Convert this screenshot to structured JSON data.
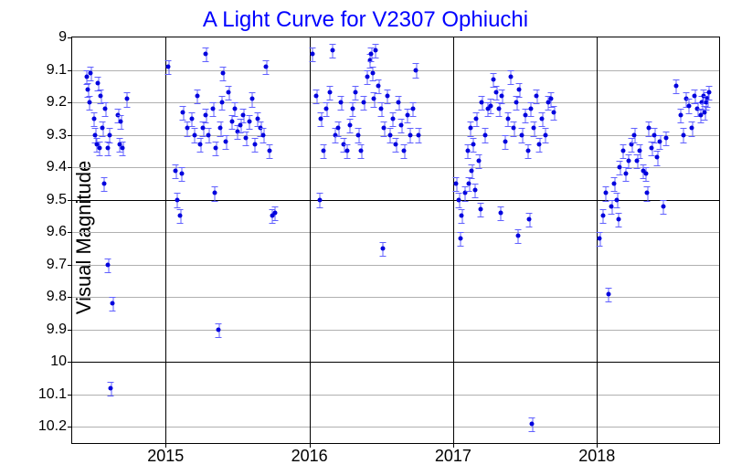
{
  "chart": {
    "type": "scatter",
    "title": "A Light Curve for V2307 Ophiuchi",
    "title_color": "#0000ff",
    "title_fontsize": 24,
    "ylabel": "Visual Magnitude",
    "ylabel_fontsize": 22,
    "background_color": "#ffffff",
    "point_color": "#0000dd",
    "errorbar_color": "#6060ff",
    "grid_major_color": "#000000",
    "grid_minor_color": "#b0b0b0",
    "xlim": [
      2014.35,
      2018.85
    ],
    "ylim": [
      10.25,
      9.0
    ],
    "y_inverted": true,
    "ytick_labels": [
      "9",
      "9.1",
      "9.2",
      "9.3",
      "9.4",
      "9.5",
      "9.6",
      "9.7",
      "9.8",
      "9.9",
      "10",
      "10.1",
      "10.2"
    ],
    "ytick_values": [
      9.0,
      9.1,
      9.2,
      9.3,
      9.4,
      9.5,
      9.6,
      9.7,
      9.8,
      9.9,
      10.0,
      10.1,
      10.2
    ],
    "ytick_major": [
      9.0,
      9.5,
      10.0
    ],
    "xtick_labels": [
      "2015",
      "2016",
      "2017",
      "2018"
    ],
    "xtick_values": [
      2015,
      2016,
      2017,
      2018
    ],
    "error_y": 0.02,
    "data": [
      [
        2014.45,
        9.12
      ],
      [
        2014.46,
        9.16
      ],
      [
        2014.47,
        9.2
      ],
      [
        2014.48,
        9.11
      ],
      [
        2014.5,
        9.25
      ],
      [
        2014.51,
        9.3
      ],
      [
        2014.52,
        9.33
      ],
      [
        2014.53,
        9.14
      ],
      [
        2014.54,
        9.34
      ],
      [
        2014.55,
        9.18
      ],
      [
        2014.56,
        9.28
      ],
      [
        2014.57,
        9.45
      ],
      [
        2014.58,
        9.22
      ],
      [
        2014.6,
        9.34
      ],
      [
        2014.61,
        9.3
      ],
      [
        2014.6,
        9.7
      ],
      [
        2014.62,
        10.08
      ],
      [
        2014.63,
        9.82
      ],
      [
        2014.67,
        9.24
      ],
      [
        2014.68,
        9.33
      ],
      [
        2014.69,
        9.26
      ],
      [
        2014.7,
        9.34
      ],
      [
        2014.73,
        9.19
      ],
      [
        2015.02,
        9.09
      ],
      [
        2015.07,
        9.41
      ],
      [
        2015.08,
        9.5
      ],
      [
        2015.1,
        9.55
      ],
      [
        2015.11,
        9.42
      ],
      [
        2015.12,
        9.23
      ],
      [
        2015.15,
        9.28
      ],
      [
        2015.18,
        9.25
      ],
      [
        2015.2,
        9.3
      ],
      [
        2015.22,
        9.18
      ],
      [
        2015.24,
        9.33
      ],
      [
        2015.26,
        9.28
      ],
      [
        2015.28,
        9.24
      ],
      [
        2015.28,
        9.05
      ],
      [
        2015.3,
        9.3
      ],
      [
        2015.33,
        9.22
      ],
      [
        2015.34,
        9.48
      ],
      [
        2015.35,
        9.34
      ],
      [
        2015.37,
        9.9
      ],
      [
        2015.38,
        9.28
      ],
      [
        2015.39,
        9.2
      ],
      [
        2015.4,
        9.11
      ],
      [
        2015.42,
        9.32
      ],
      [
        2015.44,
        9.17
      ],
      [
        2015.46,
        9.26
      ],
      [
        2015.48,
        9.22
      ],
      [
        2015.5,
        9.29
      ],
      [
        2015.52,
        9.27
      ],
      [
        2015.54,
        9.24
      ],
      [
        2015.56,
        9.31
      ],
      [
        2015.58,
        9.26
      ],
      [
        2015.6,
        9.19
      ],
      [
        2015.62,
        9.33
      ],
      [
        2015.64,
        9.25
      ],
      [
        2015.66,
        9.28
      ],
      [
        2015.68,
        9.3
      ],
      [
        2015.74,
        9.55
      ],
      [
        2015.76,
        9.54
      ],
      [
        2015.7,
        9.09
      ],
      [
        2015.72,
        9.35
      ],
      [
        2016.02,
        9.05
      ],
      [
        2016.05,
        9.18
      ],
      [
        2016.07,
        9.5
      ],
      [
        2016.08,
        9.25
      ],
      [
        2016.1,
        9.35
      ],
      [
        2016.12,
        9.22
      ],
      [
        2016.14,
        9.17
      ],
      [
        2016.16,
        9.04
      ],
      [
        2016.18,
        9.3
      ],
      [
        2016.2,
        9.28
      ],
      [
        2016.22,
        9.2
      ],
      [
        2016.24,
        9.33
      ],
      [
        2016.26,
        9.35
      ],
      [
        2016.28,
        9.27
      ],
      [
        2016.3,
        9.22
      ],
      [
        2016.32,
        9.17
      ],
      [
        2016.34,
        9.3
      ],
      [
        2016.36,
        9.35
      ],
      [
        2016.38,
        9.2
      ],
      [
        2016.4,
        9.12
      ],
      [
        2016.42,
        9.07
      ],
      [
        2016.43,
        9.05
      ],
      [
        2016.44,
        9.11
      ],
      [
        2016.45,
        9.19
      ],
      [
        2016.46,
        9.04
      ],
      [
        2016.48,
        9.15
      ],
      [
        2016.5,
        9.22
      ],
      [
        2016.51,
        9.65
      ],
      [
        2016.52,
        9.28
      ],
      [
        2016.54,
        9.18
      ],
      [
        2016.56,
        9.3
      ],
      [
        2016.58,
        9.25
      ],
      [
        2016.6,
        9.33
      ],
      [
        2016.62,
        9.2
      ],
      [
        2016.64,
        9.27
      ],
      [
        2016.66,
        9.35
      ],
      [
        2016.68,
        9.24
      ],
      [
        2016.7,
        9.3
      ],
      [
        2016.72,
        9.22
      ],
      [
        2016.74,
        9.1
      ],
      [
        2016.76,
        9.3
      ],
      [
        2017.02,
        9.45
      ],
      [
        2017.04,
        9.5
      ],
      [
        2017.05,
        9.62
      ],
      [
        2017.06,
        9.55
      ],
      [
        2017.08,
        9.48
      ],
      [
        2017.1,
        9.35
      ],
      [
        2017.11,
        9.45
      ],
      [
        2017.12,
        9.28
      ],
      [
        2017.13,
        9.41
      ],
      [
        2017.14,
        9.33
      ],
      [
        2017.15,
        9.47
      ],
      [
        2017.16,
        9.25
      ],
      [
        2017.18,
        9.38
      ],
      [
        2017.19,
        9.53
      ],
      [
        2017.2,
        9.2
      ],
      [
        2017.22,
        9.3
      ],
      [
        2017.24,
        9.22
      ],
      [
        2017.26,
        9.21
      ],
      [
        2017.28,
        9.13
      ],
      [
        2017.3,
        9.17
      ],
      [
        2017.32,
        9.22
      ],
      [
        2017.33,
        9.54
      ],
      [
        2017.34,
        9.18
      ],
      [
        2017.36,
        9.32
      ],
      [
        2017.38,
        9.25
      ],
      [
        2017.4,
        9.12
      ],
      [
        2017.42,
        9.28
      ],
      [
        2017.44,
        9.2
      ],
      [
        2017.45,
        9.61
      ],
      [
        2017.46,
        9.16
      ],
      [
        2017.48,
        9.3
      ],
      [
        2017.5,
        9.24
      ],
      [
        2017.52,
        9.35
      ],
      [
        2017.53,
        9.56
      ],
      [
        2017.54,
        9.22
      ],
      [
        2017.55,
        10.19
      ],
      [
        2017.56,
        9.28
      ],
      [
        2017.58,
        9.18
      ],
      [
        2017.6,
        9.33
      ],
      [
        2017.62,
        9.25
      ],
      [
        2017.64,
        9.3
      ],
      [
        2017.66,
        9.2
      ],
      [
        2017.68,
        9.19
      ],
      [
        2017.7,
        9.23
      ],
      [
        2018.02,
        9.62
      ],
      [
        2018.04,
        9.55
      ],
      [
        2018.06,
        9.48
      ],
      [
        2018.08,
        9.79
      ],
      [
        2018.1,
        9.52
      ],
      [
        2018.12,
        9.45
      ],
      [
        2018.14,
        9.5
      ],
      [
        2018.15,
        9.56
      ],
      [
        2018.16,
        9.4
      ],
      [
        2018.18,
        9.35
      ],
      [
        2018.2,
        9.42
      ],
      [
        2018.22,
        9.38
      ],
      [
        2018.24,
        9.33
      ],
      [
        2018.26,
        9.3
      ],
      [
        2018.28,
        9.38
      ],
      [
        2018.3,
        9.35
      ],
      [
        2018.32,
        9.41
      ],
      [
        2018.34,
        9.42
      ],
      [
        2018.35,
        9.48
      ],
      [
        2018.36,
        9.28
      ],
      [
        2018.38,
        9.34
      ],
      [
        2018.4,
        9.3
      ],
      [
        2018.42,
        9.37
      ],
      [
        2018.44,
        9.32
      ],
      [
        2018.46,
        9.52
      ],
      [
        2018.48,
        9.31
      ],
      [
        2018.55,
        9.15
      ],
      [
        2018.58,
        9.24
      ],
      [
        2018.6,
        9.3
      ],
      [
        2018.62,
        9.19
      ],
      [
        2018.64,
        9.21
      ],
      [
        2018.66,
        9.28
      ],
      [
        2018.68,
        9.18
      ],
      [
        2018.7,
        9.22
      ],
      [
        2018.72,
        9.24
      ],
      [
        2018.73,
        9.2
      ],
      [
        2018.74,
        9.18
      ],
      [
        2018.75,
        9.23
      ],
      [
        2018.76,
        9.2
      ],
      [
        2018.77,
        9.19
      ],
      [
        2018.78,
        9.17
      ]
    ]
  }
}
